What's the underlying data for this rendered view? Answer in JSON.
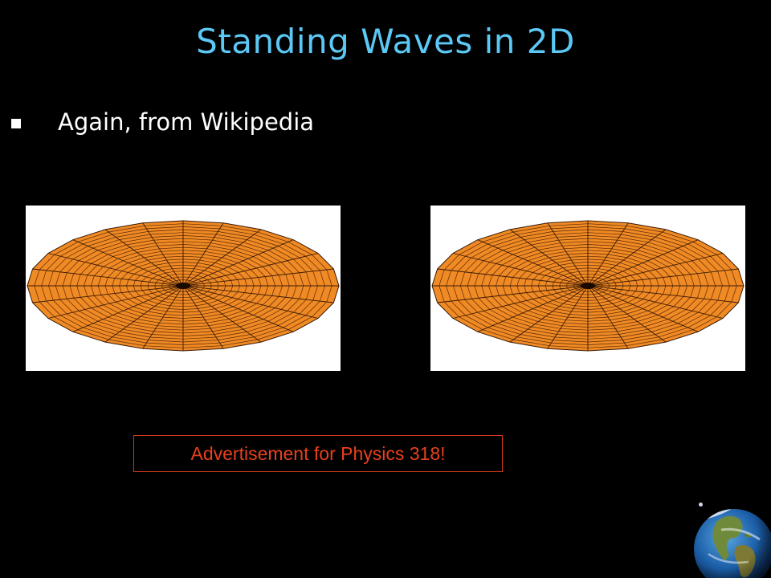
{
  "slide": {
    "title": "Standing Waves in 2D",
    "bullet": "Again, from Wikipedia",
    "advertisement": "Advertisement for Physics 318!"
  },
  "colors": {
    "background": "#000000",
    "title": "#5bc8f5",
    "membrane_fill": "#f08a24",
    "ad_text": "#e8401c"
  },
  "icons": {
    "bullet": "square-bullet-icon",
    "membrane_left": "circular-membrane-mesh-icon",
    "membrane_right": "circular-membrane-mesh-icon",
    "globe": "earth-globe-icon"
  }
}
